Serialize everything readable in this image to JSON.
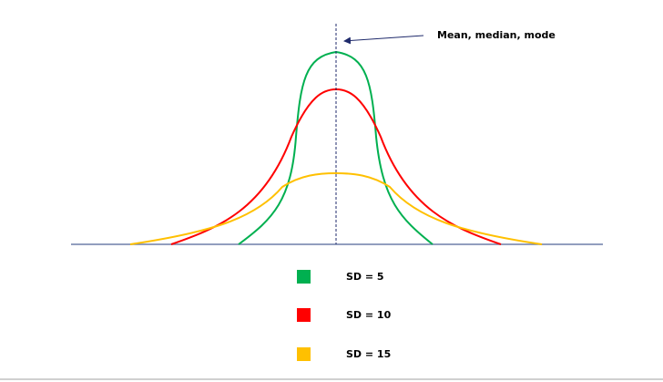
{
  "annotation": "Mean, median, mode",
  "legend": [
    {
      "label": "SD = 5",
      "color": "#00b050"
    },
    {
      "label": "SD = 10",
      "color": "#ff0000"
    },
    {
      "label": "SD = 15",
      "color": "#ffc000"
    }
  ]
}
